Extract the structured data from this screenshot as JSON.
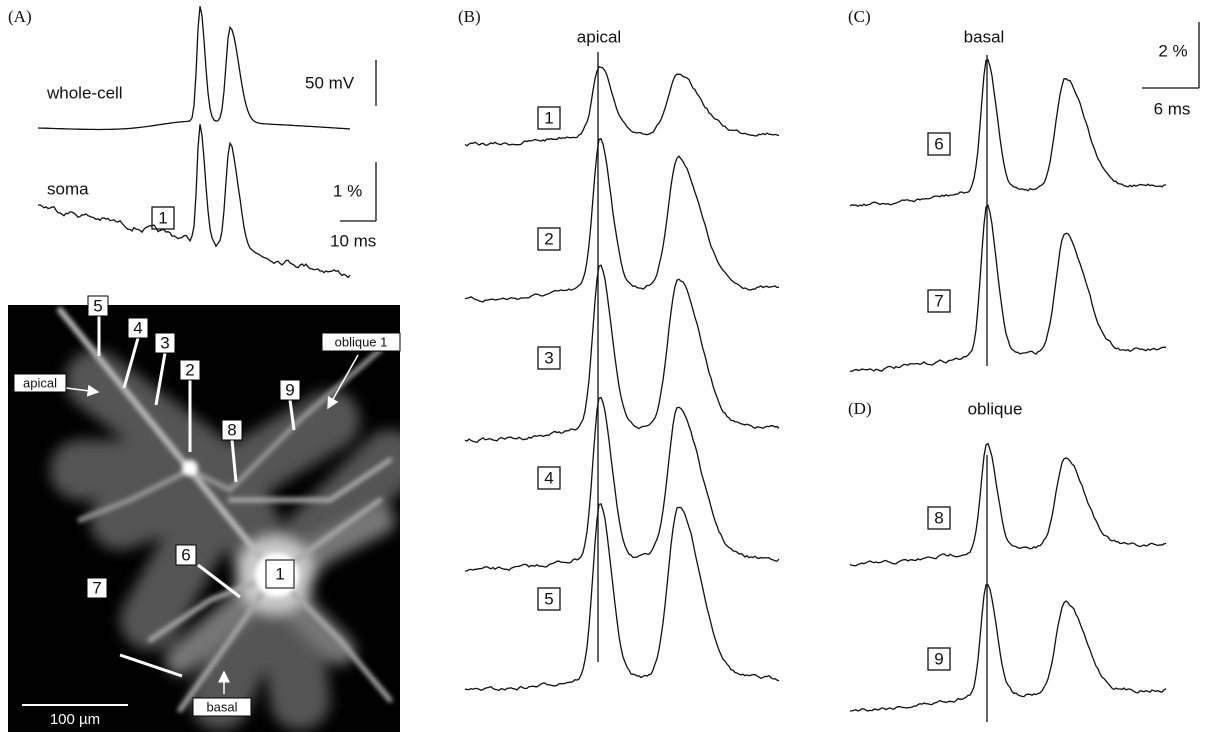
{
  "panels": {
    "A": {
      "label": "(A)",
      "traces": [
        "whole-cell",
        "soma"
      ],
      "scale_voltage": "50 mV",
      "scale_percent": "1 %",
      "scale_time": "10 ms",
      "roi": "1"
    },
    "image": {
      "rois": [
        "5",
        "4",
        "3",
        "2",
        "8",
        "9",
        "6",
        "1",
        "7"
      ],
      "annotations": [
        "apical",
        "oblique 1",
        "basal"
      ],
      "scale": "100 µm"
    },
    "B": {
      "label": "(B)",
      "title": "apical",
      "rois": [
        "1",
        "2",
        "3",
        "4",
        "5"
      ]
    },
    "C": {
      "label": "(C)",
      "title": "basal",
      "rois": [
        "6",
        "7"
      ],
      "scale_percent": "2 %",
      "scale_time": "6 ms"
    },
    "D": {
      "label": "(D)",
      "title": "oblique",
      "rois": [
        "8",
        "9"
      ]
    }
  }
}
